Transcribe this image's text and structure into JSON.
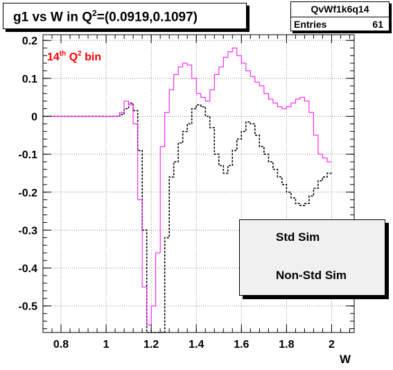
{
  "title": {
    "main": "g1 vs W in Q",
    "sup": "2",
    "rest": "=(0.0919,0.1097)"
  },
  "stats": {
    "name": "QvWf1k6q14",
    "entries_label": "Entries",
    "entries_value": "61"
  },
  "annotation": {
    "pre": "14",
    "sup1": "th",
    "mid": " Q",
    "sup2": "2",
    "post": " bin",
    "color": "#ff0000"
  },
  "legend": {
    "position": "bottom-right",
    "items": [
      {
        "label": "Std Sim",
        "color": "#000000",
        "style": "dashed"
      },
      {
        "label": "Non-Std Sim",
        "color": "#ff00ff",
        "style": "solid"
      }
    ]
  },
  "chart_data": {
    "type": "line",
    "step": true,
    "xlabel": "W",
    "ylabel": "",
    "xlim": [
      0.72,
      2.1
    ],
    "ylim": [
      -0.57,
      0.215
    ],
    "x_ticks": [
      "0.8",
      "1",
      "1.2",
      "1.4",
      "1.6",
      "1.8",
      "2"
    ],
    "y_ticks": [
      "0.2",
      "0.1",
      "0",
      "-0.1",
      "-0.2",
      "-0.3",
      "-0.4",
      "-0.5"
    ],
    "grid": true,
    "bin_width": 0.02,
    "x_start": 0.72,
    "series": [
      {
        "name": "Std Sim",
        "color": "#000000",
        "style": "dashed",
        "values": [
          0,
          0,
          0,
          0,
          0,
          0,
          0,
          0,
          0,
          0,
          0,
          0,
          0,
          0,
          0,
          0,
          0,
          0.005,
          0.02,
          0.035,
          0.015,
          -0.09,
          -0.3,
          -0.58,
          -0.58,
          -0.57,
          -0.57,
          -0.32,
          -0.16,
          -0.12,
          -0.07,
          -0.04,
          -0.02,
          0.02,
          0.03,
          0.025,
          0,
          -0.03,
          -0.1,
          -0.13,
          -0.15,
          -0.13,
          -0.09,
          -0.06,
          -0.04,
          -0.015,
          -0.02,
          -0.05,
          -0.08,
          -0.1,
          -0.12,
          -0.14,
          -0.16,
          -0.18,
          -0.2,
          -0.215,
          -0.23,
          -0.235,
          -0.23,
          -0.21,
          -0.19,
          -0.17,
          -0.16,
          -0.15
        ]
      },
      {
        "name": "Non-Std Sim",
        "color": "#ff00ff",
        "style": "solid",
        "values": [
          0,
          0,
          0,
          0,
          0,
          0,
          0,
          0,
          0,
          0,
          0,
          0,
          0,
          0,
          0,
          0,
          0,
          0.01,
          0.04,
          0.03,
          -0.02,
          -0.22,
          -0.45,
          -0.55,
          -0.5,
          -0.36,
          -0.08,
          0.01,
          0.07,
          0.11,
          0.13,
          0.14,
          0.135,
          0.1,
          0.06,
          0.05,
          0.04,
          0.07,
          0.11,
          0.13,
          0.155,
          0.17,
          0.18,
          0.16,
          0.14,
          0.12,
          0.105,
          0.09,
          0.08,
          0.06,
          0.045,
          0.035,
          0.025,
          0.02,
          0.025,
          0.035,
          0.045,
          0.05,
          0.04,
          0.01,
          -0.05,
          -0.1,
          -0.11,
          -0.12
        ]
      }
    ]
  }
}
